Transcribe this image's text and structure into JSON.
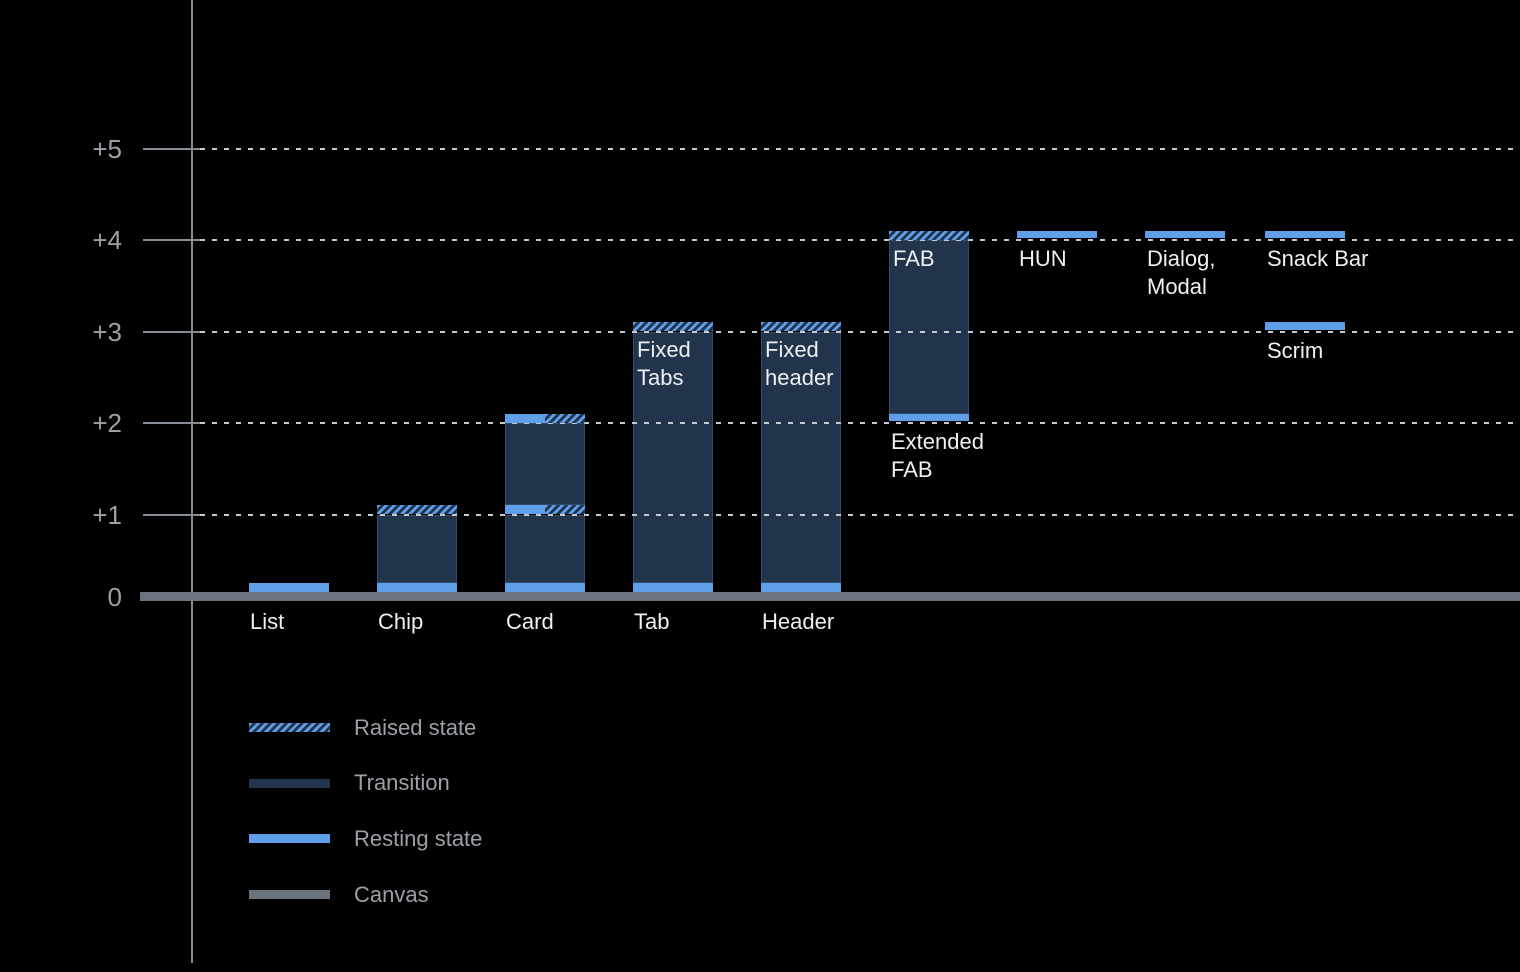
{
  "chart_data": {
    "type": "bar",
    "title": "",
    "y_axis": {
      "tick_labels": [
        "+5",
        "+4",
        "+3",
        "+2",
        "+1",
        "0"
      ],
      "tick_values": [
        5,
        4,
        3,
        2,
        1,
        0
      ],
      "ylim": [
        0,
        5.6
      ],
      "grid": "dotted horizontal gridlines at +1 through +5",
      "baseline": "thick gray canvas line at 0"
    },
    "bars": [
      {
        "name": "List",
        "col": 0,
        "axis_label": "List",
        "segments": [
          {
            "kind": "resting",
            "from": 0,
            "to": 0.1
          }
        ]
      },
      {
        "name": "Chip",
        "col": 1,
        "axis_label": "Chip",
        "segments": [
          {
            "kind": "resting",
            "from": 0,
            "to": 0.1
          },
          {
            "kind": "transition",
            "from": 0.1,
            "to": 1
          },
          {
            "kind": "raised",
            "from": 1,
            "to": 1.1
          }
        ]
      },
      {
        "name": "Card",
        "col": 2,
        "axis_label": "Card",
        "segments": [
          {
            "kind": "resting",
            "from": 0,
            "to": 0.1
          },
          {
            "kind": "transition",
            "from": 0.1,
            "to": 1
          },
          {
            "kind": "resting_raised",
            "from": 1,
            "to": 1.1
          },
          {
            "kind": "transition",
            "from": 1.1,
            "to": 2
          },
          {
            "kind": "resting_raised",
            "from": 2,
            "to": 2.1
          }
        ]
      },
      {
        "name": "Tab",
        "col": 3,
        "axis_label": "Tab",
        "inner_label_lines": [
          "Fixed",
          "Tabs"
        ],
        "segments": [
          {
            "kind": "resting",
            "from": 0,
            "to": 0.1
          },
          {
            "kind": "transition",
            "from": 0.1,
            "to": 3
          },
          {
            "kind": "raised",
            "from": 3,
            "to": 3.1
          }
        ]
      },
      {
        "name": "Header",
        "col": 4,
        "axis_label": "Header",
        "inner_label_lines": [
          "Fixed",
          "header"
        ],
        "segments": [
          {
            "kind": "resting",
            "from": 0,
            "to": 0.1
          },
          {
            "kind": "transition",
            "from": 0.1,
            "to": 3
          },
          {
            "kind": "raised",
            "from": 3,
            "to": 3.1
          }
        ]
      },
      {
        "name": "FAB",
        "col": 5,
        "inner_label_lines": [
          "FAB"
        ],
        "below_label_lines": [
          "Extended",
          "FAB"
        ],
        "segments": [
          {
            "kind": "resting",
            "from": 2,
            "to": 2.1
          },
          {
            "kind": "transition",
            "from": 2.1,
            "to": 4
          },
          {
            "kind": "raised",
            "from": 4,
            "to": 4.1
          }
        ]
      },
      {
        "name": "HUN",
        "col": 6,
        "below_label_lines": [
          "HUN"
        ],
        "segments": [
          {
            "kind": "resting",
            "from": 4,
            "to": 4.1
          }
        ]
      },
      {
        "name": "Dialog, Modal",
        "col": 7,
        "below_label_lines": [
          "Dialog,",
          "Modal"
        ],
        "segments": [
          {
            "kind": "resting",
            "from": 4,
            "to": 4.1
          }
        ]
      },
      {
        "name": "Snack Bar",
        "col": 8,
        "below_label_lines": [
          "Snack Bar"
        ],
        "segments": [
          {
            "kind": "resting",
            "from": 4,
            "to": 4.1
          }
        ]
      },
      {
        "name": "Scrim",
        "col": 8,
        "below_label_lines": [
          "Scrim"
        ],
        "segments": [
          {
            "kind": "resting",
            "from": 3,
            "to": 3.1
          }
        ]
      }
    ],
    "legend": [
      {
        "label": "Raised state",
        "style": "raised"
      },
      {
        "label": "Transition",
        "style": "transition"
      },
      {
        "label": "Resting state",
        "style": "resting"
      },
      {
        "label": "Canvas",
        "style": "canvas"
      }
    ],
    "colors": {
      "background": "#000000",
      "resting_blue": "#5F9EE8",
      "transition_dark_blue": "#21344C",
      "canvas_gray": "#6B747D",
      "axis_gray": "#868D95",
      "gridline_gray": "#C5CAD0",
      "muted_text": "#9BA1A7",
      "label_text": "#EEF0F2"
    }
  }
}
